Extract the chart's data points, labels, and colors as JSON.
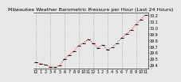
{
  "title": "Milwaukee Weather Barometric Pressure per Hour (Last 24 Hours)",
  "bg_color": "#e8e8e8",
  "plot_bg": "#e8e8e8",
  "line_color": "#cc0000",
  "marker_color": "#000000",
  "grid_color": "#999999",
  "ylim": [
    29.35,
    30.25
  ],
  "yticks": [
    29.4,
    29.5,
    29.6,
    29.7,
    29.8,
    29.9,
    30.0,
    30.1,
    30.2
  ],
  "hours": [
    0,
    1,
    2,
    3,
    4,
    5,
    6,
    7,
    8,
    9,
    10,
    11,
    12,
    13,
    14,
    15,
    16,
    17,
    18,
    19,
    20,
    21,
    22,
    23
  ],
  "pressure": [
    29.45,
    29.43,
    29.41,
    29.38,
    29.37,
    29.4,
    29.5,
    29.57,
    29.63,
    29.72,
    29.76,
    29.82,
    29.76,
    29.68,
    29.73,
    29.65,
    29.69,
    29.76,
    29.84,
    29.91,
    29.97,
    30.06,
    30.14,
    30.21
  ],
  "title_fontsize": 4.5,
  "tick_fontsize": 3.5,
  "xtick_labels": [
    "12",
    "1",
    "2",
    "3",
    "4",
    "5",
    "6",
    "7",
    "8",
    "9",
    "10",
    "11",
    "12",
    "1",
    "2",
    "3",
    "4",
    "5",
    "6",
    "7",
    "8",
    "9",
    "10",
    "11"
  ],
  "vgrid_interval": 3
}
